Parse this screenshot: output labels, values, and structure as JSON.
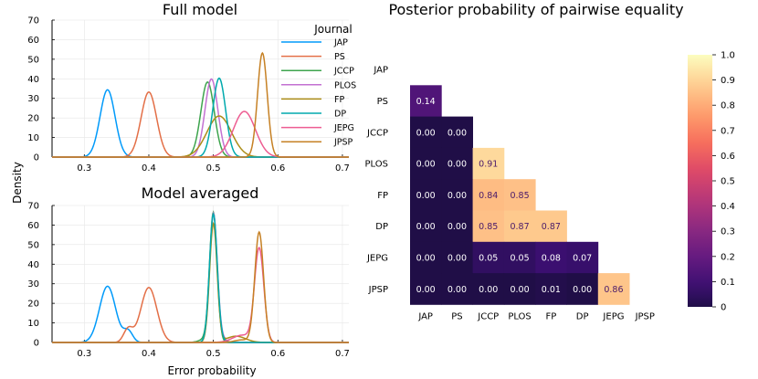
{
  "chart_data": [
    {
      "type": "line",
      "title": "Full model",
      "ylabel": "Density",
      "xlabel": "",
      "xlim": [
        0.25,
        0.71
      ],
      "ylim": [
        0,
        70
      ],
      "xticks": [
        "0.3",
        "0.4",
        "0.5",
        "0.6",
        "0.7"
      ],
      "yticks": [
        "0",
        "10",
        "20",
        "30",
        "40",
        "50",
        "60",
        "70"
      ],
      "grid": true,
      "legend_title": "Journal",
      "legend_position": "top-right",
      "series": [
        {
          "name": "JAP",
          "color": "#009AFA",
          "components": [
            {
              "mean": 0.336,
              "sd": 0.0116,
              "w": 1
            }
          ]
        },
        {
          "name": "PS",
          "color": "#E36F47",
          "components": [
            {
              "mean": 0.4,
              "sd": 0.012,
              "w": 1
            }
          ]
        },
        {
          "name": "JCCP",
          "color": "#3EA44E",
          "components": [
            {
              "mean": 0.491,
              "sd": 0.0104,
              "w": 1
            }
          ]
        },
        {
          "name": "PLOS",
          "color": "#C371D2",
          "components": [
            {
              "mean": 0.497,
              "sd": 0.01,
              "w": 1
            }
          ]
        },
        {
          "name": "FP",
          "color": "#AC8D18",
          "components": [
            {
              "mean": 0.509,
              "sd": 0.019,
              "w": 1
            }
          ]
        },
        {
          "name": "DP",
          "color": "#00A9AD",
          "components": [
            {
              "mean": 0.509,
              "sd": 0.0099,
              "w": 1
            }
          ]
        },
        {
          "name": "JEPG",
          "color": "#ED5D92",
          "components": [
            {
              "mean": 0.548,
              "sd": 0.0171,
              "w": 1
            }
          ]
        },
        {
          "name": "JPSP",
          "color": "#C68125",
          "components": [
            {
              "mean": 0.576,
              "sd": 0.0075,
              "w": 1
            }
          ]
        }
      ]
    },
    {
      "type": "line",
      "title": "Model averaged",
      "xlabel": "Error probability",
      "ylabel": "",
      "xlim": [
        0.25,
        0.71
      ],
      "ylim": [
        0,
        70
      ],
      "xticks": [
        "0.3",
        "0.4",
        "0.5",
        "0.6",
        "0.7"
      ],
      "yticks": [
        "0",
        "10",
        "20",
        "30",
        "40",
        "50",
        "60",
        "70"
      ],
      "grid": true,
      "series": [
        {
          "name": "JAP",
          "color": "#009AFA",
          "components": [
            {
              "mean": 0.336,
              "sd": 0.0125,
              "w": 0.9
            },
            {
              "mean": 0.368,
              "sd": 0.007,
              "w": 0.1
            }
          ]
        },
        {
          "name": "PS",
          "color": "#E36F47",
          "components": [
            {
              "mean": 0.4,
              "sd": 0.0125,
              "w": 0.88
            },
            {
              "mean": 0.368,
              "sd": 0.007,
              "w": 0.12
            }
          ]
        },
        {
          "name": "JCCP",
          "color": "#3EA44E",
          "components": [
            {
              "mean": 0.5,
              "sd": 0.0058,
              "w": 0.95
            },
            {
              "mean": 0.49,
              "sd": 0.01,
              "w": 0.05
            }
          ]
        },
        {
          "name": "PLOS",
          "color": "#C371D2",
          "components": [
            {
              "mean": 0.5,
              "sd": 0.0058,
              "w": 0.93
            },
            {
              "mean": 0.508,
              "sd": 0.008,
              "w": 0.07
            }
          ]
        },
        {
          "name": "FP",
          "color": "#AC8D18",
          "components": [
            {
              "mean": 0.5,
              "sd": 0.0058,
              "w": 0.88
            },
            {
              "mean": 0.535,
              "sd": 0.015,
              "w": 0.12
            }
          ]
        },
        {
          "name": "DP",
          "color": "#00A9AD",
          "components": [
            {
              "mean": 0.5,
              "sd": 0.006,
              "w": 0.98
            },
            {
              "mean": 0.51,
              "sd": 0.008,
              "w": 0.02
            }
          ]
        },
        {
          "name": "JEPG",
          "color": "#ED5D92",
          "components": [
            {
              "mean": 0.571,
              "sd": 0.0072,
              "w": 0.86
            },
            {
              "mean": 0.545,
              "sd": 0.015,
              "w": 0.14
            }
          ]
        },
        {
          "name": "JPSP",
          "color": "#C68125",
          "components": [
            {
              "mean": 0.571,
              "sd": 0.0068,
              "w": 0.96
            },
            {
              "mean": 0.545,
              "sd": 0.012,
              "w": 0.04
            }
          ]
        }
      ]
    },
    {
      "type": "heatmap",
      "title": "Posterior probability of pairwise equality",
      "categories": [
        "JAP",
        "PS",
        "JCCP",
        "PLOS",
        "FP",
        "DP",
        "JEPG",
        "JPSP"
      ],
      "colormap": "magma",
      "colorbar_range": [
        0,
        1
      ],
      "colorbar_ticks": [
        "0",
        "0.1",
        "0.2",
        "0.3",
        "0.4",
        "0.5",
        "0.6",
        "0.7",
        "0.8",
        "0.9",
        "1.0"
      ],
      "lower_triangle": [
        [],
        [
          0.14
        ],
        [
          0.0,
          0.0
        ],
        [
          0.0,
          0.0,
          0.91
        ],
        [
          0.0,
          0.0,
          0.84,
          0.85
        ],
        [
          0.0,
          0.0,
          0.85,
          0.87,
          0.87
        ],
        [
          0.0,
          0.0,
          0.05,
          0.05,
          0.08,
          0.07
        ],
        [
          0.0,
          0.0,
          0.0,
          0.0,
          0.01,
          0.0,
          0.86
        ]
      ],
      "cell_labels": [
        [],
        [
          "0.14"
        ],
        [
          "0.00",
          "0.00"
        ],
        [
          "0.00",
          "0.00",
          "0.91"
        ],
        [
          "0.00",
          "0.00",
          "0.84",
          "0.85"
        ],
        [
          "0.00",
          "0.00",
          "0.85",
          "0.87",
          "0.87"
        ],
        [
          "0.00",
          "0.00",
          "0.05",
          "0.05",
          "0.08",
          "0.07"
        ],
        [
          "0.00",
          "0.00",
          "0.00",
          "0.00",
          "0.01",
          "0.00",
          "0.86"
        ]
      ]
    }
  ]
}
